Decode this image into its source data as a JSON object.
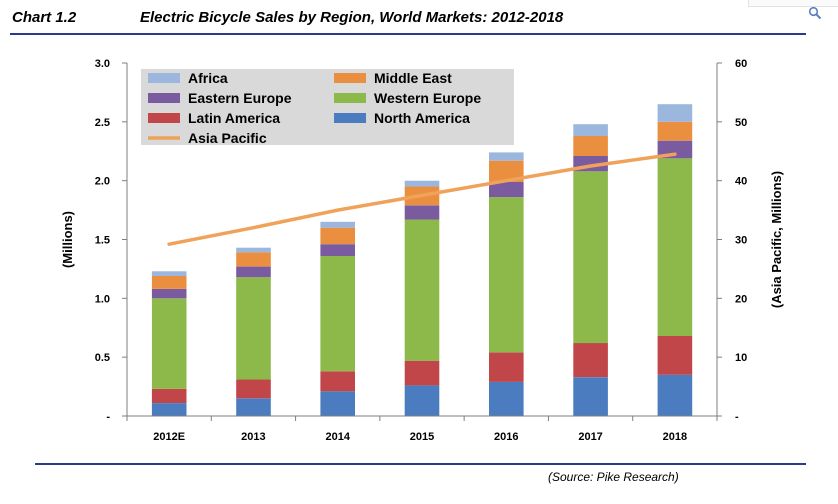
{
  "header": {
    "chart_number": "Chart 1.2",
    "title": "Electric Bicycle Sales by Region, World Markets: 2012-2018"
  },
  "footer": {
    "source": "(Source: Pike Research)"
  },
  "colors": {
    "Africa": "#9bb7dd",
    "Middle East": "#ea8f40",
    "Eastern Europe": "#7a5ba0",
    "Western Europe": "#8db84a",
    "Latin America": "#c0464a",
    "North America": "#4a7cbf",
    "Asia Pacific": "#f0a25a",
    "legend_bg": "#d9d9d9",
    "rule": "#2b3a8f"
  },
  "chart_data": {
    "type": "bar",
    "stacked": true,
    "title": "Electric Bicycle Sales by Region, World Markets: 2012-2018",
    "categories": [
      "2012E",
      "2013",
      "2014",
      "2015",
      "2016",
      "2017",
      "2018"
    ],
    "ylabel": "(Millions)",
    "ylabel_right": "(Asia Pacific, Millions)",
    "ylim": [
      0,
      3.0
    ],
    "ylim_right": [
      0,
      60
    ],
    "yticks": [
      "-",
      "0.5",
      "1.0",
      "1.5",
      "2.0",
      "2.5",
      "3.0"
    ],
    "yticks_right": [
      "-",
      "10",
      "20",
      "30",
      "40",
      "50",
      "60"
    ],
    "series": [
      {
        "name": "North America",
        "values": [
          0.11,
          0.15,
          0.21,
          0.26,
          0.29,
          0.33,
          0.35
        ]
      },
      {
        "name": "Latin America",
        "values": [
          0.12,
          0.16,
          0.17,
          0.21,
          0.25,
          0.29,
          0.33
        ]
      },
      {
        "name": "Western Europe",
        "values": [
          0.77,
          0.87,
          0.98,
          1.2,
          1.32,
          1.46,
          1.51
        ]
      },
      {
        "name": "Eastern Europe",
        "values": [
          0.08,
          0.09,
          0.1,
          0.12,
          0.13,
          0.13,
          0.15
        ]
      },
      {
        "name": "Middle East",
        "values": [
          0.11,
          0.12,
          0.14,
          0.16,
          0.18,
          0.17,
          0.16
        ]
      },
      {
        "name": "Africa",
        "values": [
          0.04,
          0.04,
          0.05,
          0.05,
          0.07,
          0.1,
          0.15
        ]
      }
    ],
    "line_series": {
      "name": "Asia Pacific",
      "axis": "right",
      "values": [
        29.2,
        32.0,
        35.0,
        37.5,
        40.0,
        42.5,
        44.5
      ]
    },
    "legend": [
      {
        "name": "Africa",
        "kind": "bar"
      },
      {
        "name": "Middle East",
        "kind": "bar"
      },
      {
        "name": "Eastern Europe",
        "kind": "bar"
      },
      {
        "name": "Western Europe",
        "kind": "bar"
      },
      {
        "name": "Latin America",
        "kind": "bar"
      },
      {
        "name": "North America",
        "kind": "bar"
      },
      {
        "name": "Asia Pacific",
        "kind": "line"
      }
    ],
    "legend_position": "top-left",
    "grid": false
  }
}
